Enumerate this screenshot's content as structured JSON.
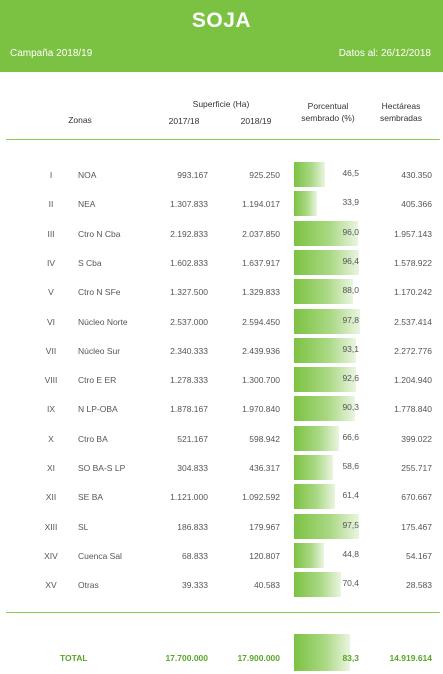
{
  "header": {
    "title": "SOJA",
    "campaign": "Campaña 2018/19",
    "date": "Datos al: 26/12/2018"
  },
  "columns": {
    "zones": "Zonas",
    "surface": "Superficie (Ha)",
    "year1": "2017/18",
    "year2": "2018/19",
    "percent_l1": "Porcentual",
    "percent_l2": "sembrado (%)",
    "hectares_l1": "Hectáreas",
    "hectares_l2": "sembradas"
  },
  "rows": [
    {
      "num": "I",
      "zone": "NOA",
      "s2017": "993.167",
      "s2018": "925.250",
      "pct": "46,5",
      "pct_value": 46.5,
      "ha": "430.350"
    },
    {
      "num": "II",
      "zone": "NEA",
      "s2017": "1.307.833",
      "s2018": "1.194.017",
      "pct": "33,9",
      "pct_value": 33.9,
      "ha": "405.366"
    },
    {
      "num": "III",
      "zone": "Ctro N Cba",
      "s2017": "2.192.833",
      "s2018": "2.037.850",
      "pct": "96,0",
      "pct_value": 96.0,
      "ha": "1.957.143"
    },
    {
      "num": "IV",
      "zone": "S Cba",
      "s2017": "1.602.833",
      "s2018": "1.637.917",
      "pct": "96,4",
      "pct_value": 96.4,
      "ha": "1.578.922"
    },
    {
      "num": "V",
      "zone": "Ctro N SFe",
      "s2017": "1.327.500",
      "s2018": "1.329.833",
      "pct": "88,0",
      "pct_value": 88.0,
      "ha": "1.170.242"
    },
    {
      "num": "VI",
      "zone": "Núcleo Norte",
      "s2017": "2.537.000",
      "s2018": "2.594.450",
      "pct": "97,8",
      "pct_value": 97.8,
      "ha": "2.537.414"
    },
    {
      "num": "VII",
      "zone": "Núcleo Sur",
      "s2017": "2.340.333",
      "s2018": "2.439.936",
      "pct": "93,1",
      "pct_value": 93.1,
      "ha": "2.272.776"
    },
    {
      "num": "VIII",
      "zone": "Ctro E ER",
      "s2017": "1.278.333",
      "s2018": "1.300.700",
      "pct": "92,6",
      "pct_value": 92.6,
      "ha": "1.204.940"
    },
    {
      "num": "IX",
      "zone": "N LP-OBA",
      "s2017": "1.878.167",
      "s2018": "1.970.840",
      "pct": "90,3",
      "pct_value": 90.3,
      "ha": "1.778.840"
    },
    {
      "num": "X",
      "zone": "Ctro BA",
      "s2017": "521.167",
      "s2018": "598.942",
      "pct": "66,6",
      "pct_value": 66.6,
      "ha": "399.022"
    },
    {
      "num": "XI",
      "zone": "SO BA-S LP",
      "s2017": "304.833",
      "s2018": "436.317",
      "pct": "58,6",
      "pct_value": 58.6,
      "ha": "255.717"
    },
    {
      "num": "XII",
      "zone": "SE BA",
      "s2017": "1.121.000",
      "s2018": "1.092.592",
      "pct": "61,4",
      "pct_value": 61.4,
      "ha": "670.667"
    },
    {
      "num": "XIII",
      "zone": "SL",
      "s2017": "186.833",
      "s2018": "179.967",
      "pct": "97,5",
      "pct_value": 97.5,
      "ha": "175.467"
    },
    {
      "num": "XIV",
      "zone": "Cuenca Sal",
      "s2017": "68.833",
      "s2018": "120.807",
      "pct": "44,8",
      "pct_value": 44.8,
      "ha": "54.167"
    },
    {
      "num": "XV",
      "zone": "Otras",
      "s2017": "39.333",
      "s2018": "40.583",
      "pct": "70,4",
      "pct_value": 70.4,
      "ha": "28.583"
    }
  ],
  "total": {
    "label": "TOTAL",
    "s2017": "17.700.000",
    "s2018": "17.900.000",
    "pct": "83,3",
    "pct_value": 83.3,
    "ha": "14.919.614"
  },
  "colors": {
    "accent": "#7cc242",
    "total_text": "#5aa52a"
  }
}
